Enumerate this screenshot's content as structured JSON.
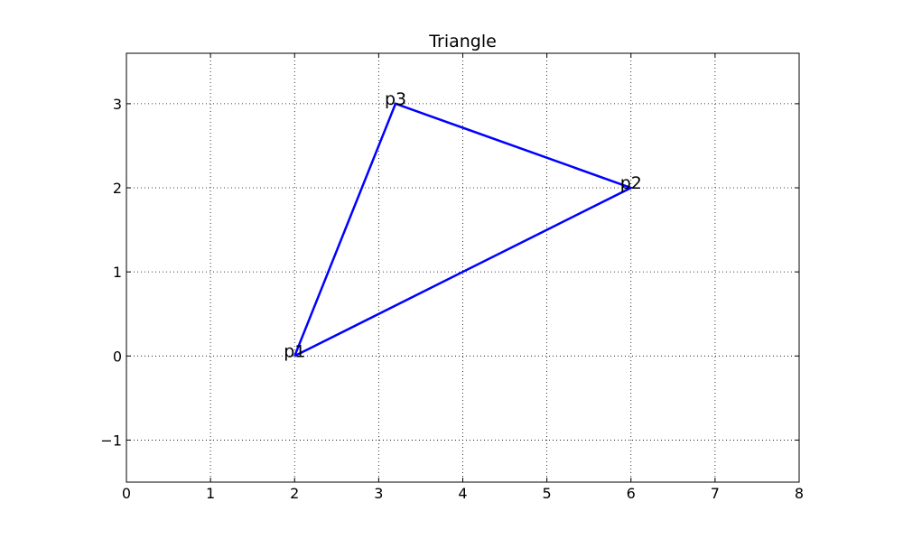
{
  "chart_data": {
    "type": "line",
    "title": "Triangle",
    "xlabel": "",
    "ylabel": "",
    "xlim": [
      0,
      8
    ],
    "ylim": [
      -1.5,
      3.6
    ],
    "xticks": [
      0,
      1,
      2,
      3,
      4,
      5,
      6,
      7,
      8
    ],
    "yticks": [
      -1,
      0,
      1,
      2,
      3
    ],
    "xtick_labels": [
      "0",
      "1",
      "2",
      "3",
      "4",
      "5",
      "6",
      "7",
      "8"
    ],
    "ytick_labels": [
      "−1",
      "0",
      "1",
      "2",
      "3"
    ],
    "grid": true,
    "legend": "none",
    "series": [
      {
        "x": [
          2,
          6,
          3.2,
          2
        ],
        "y": [
          0,
          2,
          3,
          0
        ],
        "color": "#0000ff"
      }
    ],
    "annotations": [
      {
        "text": "p1",
        "x": 2,
        "y": 0
      },
      {
        "text": "p2",
        "x": 6,
        "y": 2
      },
      {
        "text": "p3",
        "x": 3.2,
        "y": 3
      }
    ]
  }
}
